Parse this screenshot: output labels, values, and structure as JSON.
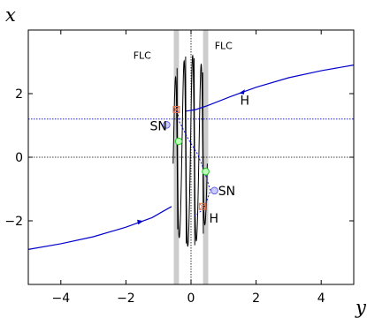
{
  "chart_data": {
    "type": "line",
    "xlabel": "y",
    "ylabel": "x",
    "xlim": [
      -5,
      5
    ],
    "ylim": [
      -4,
      4
    ],
    "xticks": [
      "−4",
      "−2",
      "0",
      "2",
      "4"
    ],
    "xtick_values": [
      -4,
      -2,
      0,
      2,
      4
    ],
    "yticks": [
      "2",
      "0",
      "−2"
    ],
    "ytick_values": [
      2,
      0,
      -2
    ],
    "annotations": [
      {
        "text": "FLC",
        "x": -1.5,
        "y": 3.1,
        "size": "small"
      },
      {
        "text": "FLC",
        "x": 1.0,
        "y": 3.4,
        "size": "small"
      },
      {
        "text": "H",
        "x": 1.65,
        "y": 1.65,
        "size": "big"
      },
      {
        "text": "SN",
        "x": -1.0,
        "y": 0.85,
        "size": "big"
      },
      {
        "text": "SN",
        "x": 1.1,
        "y": -1.2,
        "size": "big"
      },
      {
        "text": "H",
        "x": 0.7,
        "y": -2.05,
        "size": "big"
      }
    ],
    "reference_lines": [
      {
        "orientation": "horizontal",
        "value": 1.2,
        "color": "#0000cc"
      },
      {
        "orientation": "horizontal",
        "value": 0,
        "color": "#000000"
      },
      {
        "orientation": "vertical",
        "value": 0,
        "color": "#000000"
      }
    ],
    "bands": [
      {
        "center": -0.45,
        "width": 0.16
      },
      {
        "center": 0.45,
        "width": 0.16
      }
    ],
    "series": [
      {
        "color": "#0000cc",
        "x": [
          -5,
          -4,
          -3,
          -2,
          -1.2,
          -0.6
        ],
        "y": [
          -2.9,
          -2.72,
          -2.5,
          -2.2,
          -1.9,
          -1.55
        ],
        "arrow_at": [
          -1.6,
          -2.05
        ]
      },
      {
        "color": "#0000cc",
        "x": [
          5,
          4,
          3,
          2,
          1.2,
          0.5,
          0.15,
          -0.15
        ],
        "y": [
          2.9,
          2.72,
          2.5,
          2.2,
          1.9,
          1.62,
          1.5,
          1.45
        ],
        "arrow_at": [
          1.6,
          2.05
        ]
      },
      {
        "color": "#0000cc",
        "dashed": true,
        "x": [
          -0.42,
          -0.35,
          -0.1,
          0.2,
          0.4,
          0.55,
          0.6,
          0.42,
          0.3,
          0.1
        ],
        "y": [
          1.45,
          1.1,
          0.6,
          0.1,
          -0.4,
          -0.9,
          -1.05,
          -1.55,
          -1.7,
          -1.85
        ]
      }
    ],
    "oscillation": {
      "x_range": [
        -0.55,
        0.5
      ],
      "y_range": [
        -3.0,
        3.0
      ],
      "color": "#000000"
    },
    "markers": [
      {
        "x": -0.75,
        "y": 1.02,
        "kind": "SN",
        "color": "#6666ee"
      },
      {
        "x": 0.72,
        "y": -1.05,
        "kind": "SN",
        "color": "#6666ee"
      },
      {
        "x": -0.45,
        "y": 1.5,
        "kind": "H",
        "color": "#dd7755"
      },
      {
        "x": 0.35,
        "y": -1.55,
        "kind": "H",
        "color": "#dd7755"
      },
      {
        "x": -0.38,
        "y": 0.5,
        "kind": "eq",
        "color": "#22cc22"
      },
      {
        "x": 0.45,
        "y": -0.45,
        "kind": "eq",
        "color": "#22cc22"
      }
    ]
  }
}
